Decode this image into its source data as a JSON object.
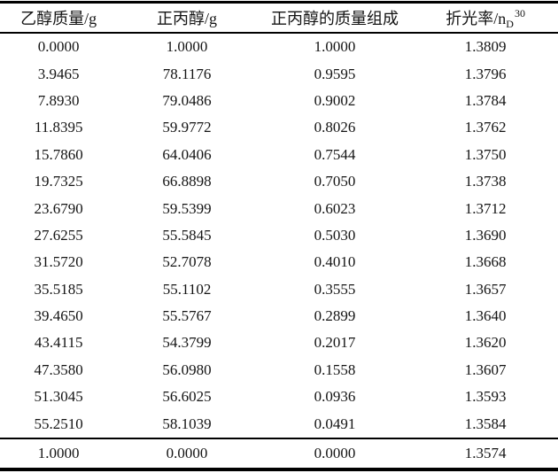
{
  "page": {
    "background_color": "#ffffff",
    "text_color": "#141414",
    "rule_color": "#000000"
  },
  "table": {
    "headers": [
      {
        "text": "乙醇质量/g"
      },
      {
        "text": "正丙醇/g"
      },
      {
        "text": "正丙醇的质量组成"
      },
      {
        "text": "折光率/n",
        "sub": "D",
        "sup": "30"
      }
    ],
    "rows": [
      [
        "0.0000",
        "1.0000",
        "1.0000",
        "1.3809"
      ],
      [
        "3.9465",
        "78.1176",
        "0.9595",
        "1.3796"
      ],
      [
        "7.8930",
        "79.0486",
        "0.9002",
        "1.3784"
      ],
      [
        "11.8395",
        "59.9772",
        "0.8026",
        "1.3762"
      ],
      [
        "15.7860",
        "64.0406",
        "0.7544",
        "1.3750"
      ],
      [
        "19.7325",
        "66.8898",
        "0.7050",
        "1.3738"
      ],
      [
        "23.6790",
        "59.5399",
        "0.6023",
        "1.3712"
      ],
      [
        "27.6255",
        "55.5845",
        "0.5030",
        "1.3690"
      ],
      [
        "31.5720",
        "52.7078",
        "0.4010",
        "1.3668"
      ],
      [
        "35.5185",
        "55.1102",
        "0.3555",
        "1.3657"
      ],
      [
        "39.4650",
        "55.5767",
        "0.2899",
        "1.3640"
      ],
      [
        "43.4115",
        "54.3799",
        "0.2017",
        "1.3620"
      ],
      [
        "47.3580",
        "56.0980",
        "0.1558",
        "1.3607"
      ],
      [
        "51.3045",
        "56.6025",
        "0.0936",
        "1.3593"
      ],
      [
        "55.2510",
        "58.1039",
        "0.0491",
        "1.3584"
      ]
    ],
    "footer_row": [
      "1.0000",
      "0.0000",
      "0.0000",
      "1.3574"
    ]
  },
  "chart_data": {
    "type": "table",
    "columns": [
      "乙醇质量/g",
      "正丙醇/g",
      "正丙醇的质量组成",
      "折光率/nD30"
    ],
    "rows": [
      [
        0.0,
        1.0,
        1.0,
        1.3809
      ],
      [
        3.9465,
        78.1176,
        0.9595,
        1.3796
      ],
      [
        7.893,
        79.0486,
        0.9002,
        1.3784
      ],
      [
        11.8395,
        59.9772,
        0.8026,
        1.3762
      ],
      [
        15.786,
        64.0406,
        0.7544,
        1.375
      ],
      [
        19.7325,
        66.8898,
        0.705,
        1.3738
      ],
      [
        23.679,
        59.5399,
        0.6023,
        1.3712
      ],
      [
        27.6255,
        55.5845,
        0.503,
        1.369
      ],
      [
        31.572,
        52.7078,
        0.401,
        1.3668
      ],
      [
        35.5185,
        55.1102,
        0.3555,
        1.3657
      ],
      [
        39.465,
        55.5767,
        0.2899,
        1.364
      ],
      [
        43.4115,
        54.3799,
        0.2017,
        1.362
      ],
      [
        47.358,
        56.098,
        0.1558,
        1.3607
      ],
      [
        51.3045,
        56.6025,
        0.0936,
        1.3593
      ],
      [
        55.251,
        58.1039,
        0.0491,
        1.3584
      ],
      [
        1.0,
        0.0,
        0.0,
        1.3574
      ]
    ]
  }
}
